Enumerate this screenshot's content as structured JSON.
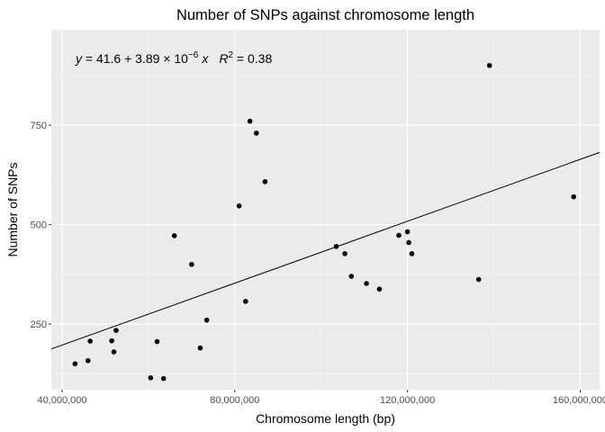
{
  "chart_data": {
    "type": "scatter",
    "title": "Number of SNPs against chromosome length",
    "xlabel": "Chromosome length (bp)",
    "ylabel": "Number of SNPs",
    "xlim": [
      37500000,
      164500000
    ],
    "ylim": [
      80000000,
      0
    ],
    "x_ticks": [
      40000000,
      80000000,
      120000000,
      160000000
    ],
    "x_tick_labels": [
      "40,000,000",
      "80,000,000",
      "120,000,000",
      "160,000,000"
    ],
    "y_ticks": [
      250,
      500,
      750
    ],
    "y_tick_labels": [
      "250",
      "500",
      "750"
    ],
    "grid": true,
    "points": [
      {
        "x": 43000000,
        "y": 150
      },
      {
        "x": 46000000,
        "y": 158
      },
      {
        "x": 46500000,
        "y": 207
      },
      {
        "x": 51500000,
        "y": 208
      },
      {
        "x": 52000000,
        "y": 180
      },
      {
        "x": 52500000,
        "y": 234
      },
      {
        "x": 60500000,
        "y": 115
      },
      {
        "x": 62000000,
        "y": 206
      },
      {
        "x": 63500000,
        "y": 113
      },
      {
        "x": 66000000,
        "y": 472
      },
      {
        "x": 70000000,
        "y": 400
      },
      {
        "x": 72000000,
        "y": 190
      },
      {
        "x": 73500000,
        "y": 260
      },
      {
        "x": 81000000,
        "y": 547
      },
      {
        "x": 82500000,
        "y": 307
      },
      {
        "x": 83500000,
        "y": 760
      },
      {
        "x": 85000000,
        "y": 730
      },
      {
        "x": 87000000,
        "y": 608
      },
      {
        "x": 103500000,
        "y": 445
      },
      {
        "x": 105500000,
        "y": 427
      },
      {
        "x": 107000000,
        "y": 370
      },
      {
        "x": 110500000,
        "y": 352
      },
      {
        "x": 113500000,
        "y": 338
      },
      {
        "x": 118000000,
        "y": 473
      },
      {
        "x": 120000000,
        "y": 482
      },
      {
        "x": 120300000,
        "y": 455
      },
      {
        "x": 121000000,
        "y": 427
      },
      {
        "x": 136500000,
        "y": 362
      },
      {
        "x": 139000000,
        "y": 900
      },
      {
        "x": 158500000,
        "y": 570
      }
    ],
    "fit": {
      "intercept": 41.6,
      "slope": 3.89e-06,
      "r_squared": 0.38
    },
    "annotation": {
      "y_var": "y",
      "eq_main": " = 41.6 + 3.89 × 10",
      "eq_exp": "−6",
      "x_var": "x",
      "r_var": "R",
      "r_exp": "2",
      "r_val": " = 0.38"
    },
    "colors": {
      "panel": "#ebebeb",
      "grid_major": "#ffffff",
      "grid_minor": "#f5f5f5",
      "point": "#000000",
      "line": "#000000"
    }
  }
}
